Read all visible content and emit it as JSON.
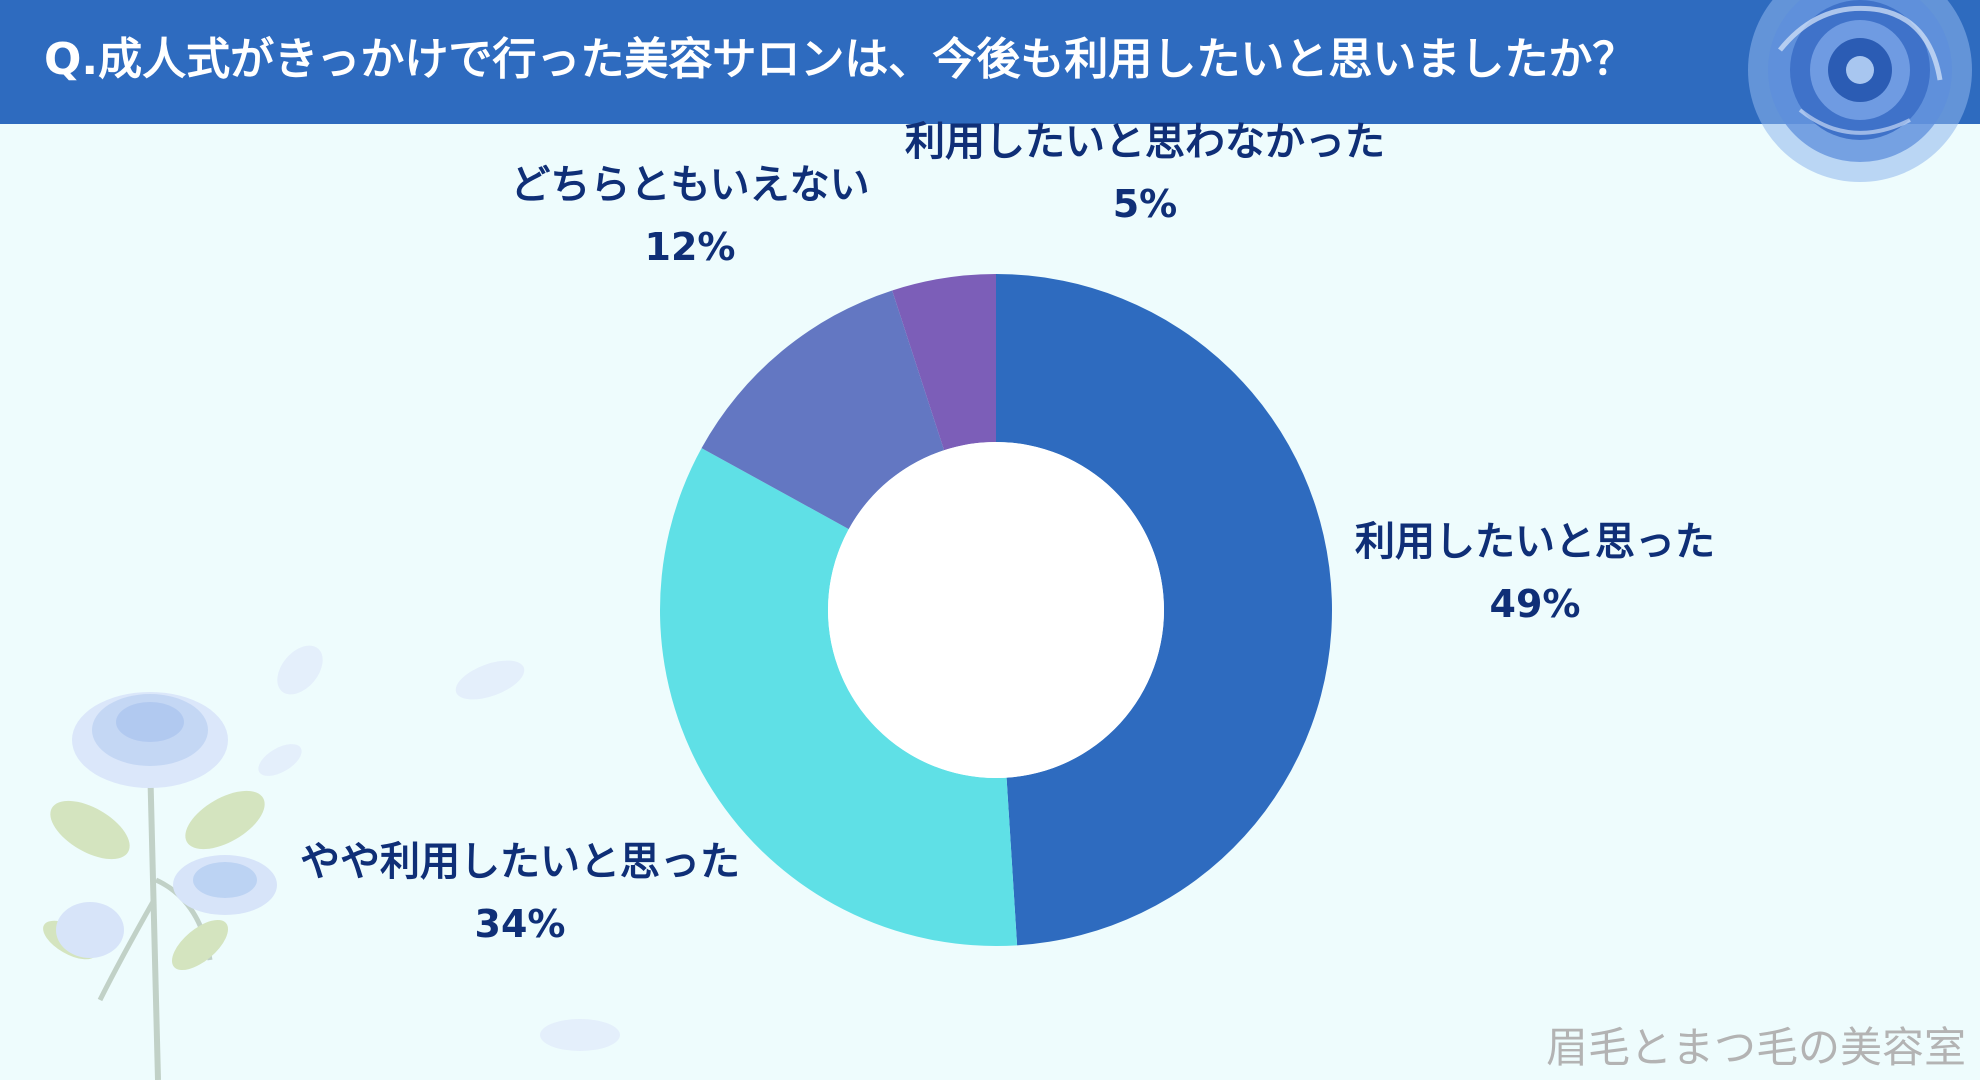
{
  "title": "Q.成人式がきっかけで行った美容サロンは、今後も利用したいと思いましたか？",
  "watermark": "眉毛とまつ毛の美容室",
  "colors": {
    "header": "#2e6bbf",
    "background": "#eefcfd",
    "label_text": "#0f2f77"
  },
  "decorations": {
    "top_right": "blue-rose-icon",
    "bottom_left": "blue-rose-branch-icon"
  },
  "chart_data": {
    "type": "pie",
    "style": "donut",
    "title": "Q.成人式がきっかけで行った美容サロンは、今後も利用したいと思いましたか？",
    "slices": [
      {
        "label": "利用したいと思った",
        "value": 49,
        "display": "49%",
        "color": "#2e6bbf"
      },
      {
        "label": "やや利用したいと思った",
        "value": 34,
        "display": "34%",
        "color": "#5fe0e6"
      },
      {
        "label": "どちらともいえない",
        "value": 12,
        "display": "12%",
        "color": "#6377c2"
      },
      {
        "label": "利用したいと思わなかった",
        "value": 5,
        "display": "5%",
        "color": "#7c5eb8"
      }
    ],
    "legend": "none"
  }
}
